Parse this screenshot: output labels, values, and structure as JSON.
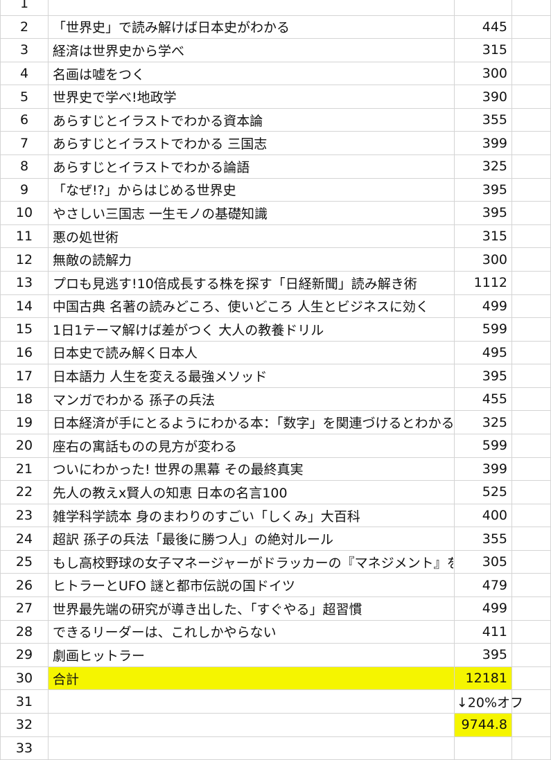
{
  "rows": [
    {
      "n": "1",
      "title": "",
      "price": ""
    },
    {
      "n": "2",
      "title": "「世界史」で読み解けば日本史がわかる",
      "price": "445"
    },
    {
      "n": "3",
      "title": "経済は世界史から学べ",
      "price": "315"
    },
    {
      "n": "4",
      "title": "名画は嘘をつく",
      "price": "300"
    },
    {
      "n": "5",
      "title": "世界史で学べ!地政学",
      "price": "390"
    },
    {
      "n": "6",
      "title": "あらすじとイラストでわかる資本論",
      "price": "355"
    },
    {
      "n": "7",
      "title": "あらすじとイラストでわかる 三国志",
      "price": "399"
    },
    {
      "n": "8",
      "title": "あらすじとイラストでわかる論語",
      "price": "325"
    },
    {
      "n": "9",
      "title": "「なぜ!?」からはじめる世界史",
      "price": "395"
    },
    {
      "n": "10",
      "title": "やさしい三国志 一生モノの基礎知識",
      "price": "395"
    },
    {
      "n": "11",
      "title": "悪の処世術",
      "price": "315"
    },
    {
      "n": "12",
      "title": "無敵の読解力",
      "price": "300"
    },
    {
      "n": "13",
      "title": "プロも見逃す!10倍成長する株を探す「日経新聞」読み解き術",
      "price": "1112"
    },
    {
      "n": "14",
      "title": "中国古典 名著の読みどころ、使いどころ 人生とビジネスに効く",
      "price": "499"
    },
    {
      "n": "15",
      "title": "1日1テーマ解けば差がつく 大人の教養ドリル",
      "price": "599"
    },
    {
      "n": "16",
      "title": "日本史で読み解く日本人",
      "price": "495"
    },
    {
      "n": "17",
      "title": "日本語力 人生を変える最強メソッド",
      "price": "395"
    },
    {
      "n": "18",
      "title": "マンガでわかる 孫子の兵法",
      "price": "455"
    },
    {
      "n": "19",
      "title": "日本経済が手にとるようにわかる本：「数字」を関連づけるとわかる",
      "price": "325"
    },
    {
      "n": "20",
      "title": "座右の寓話ものの見方が変わる",
      "price": "599"
    },
    {
      "n": "21",
      "title": "ついにわかった! 世界の黒幕 その最終真実",
      "price": "399"
    },
    {
      "n": "22",
      "title": "先人の教えx賢人の知恵 日本の名言100",
      "price": "525"
    },
    {
      "n": "23",
      "title": "雑学科学読本 身のまわりのすごい「しくみ」大百科",
      "price": "400"
    },
    {
      "n": "24",
      "title": "超訳 孫子の兵法「最後に勝つ人」の絶対ルール",
      "price": "355"
    },
    {
      "n": "25",
      "title": "もし高校野球の女子マネージャーがドラッカーの『マネジメント』を読んだら",
      "price": "305"
    },
    {
      "n": "26",
      "title": "ヒトラーとUFO 謎と都市伝説の国ドイツ",
      "price": "479"
    },
    {
      "n": "27",
      "title": "世界最先端の研究が導き出した、「すぐやる」超習慣",
      "price": "499"
    },
    {
      "n": "28",
      "title": "できるリーダーは、これしかやらない",
      "price": "411"
    },
    {
      "n": "29",
      "title": "劇画ヒットラー",
      "price": "395"
    }
  ],
  "total": {
    "n": "30",
    "label": "合計",
    "value": "12181"
  },
  "discount": {
    "n": "31",
    "label": "↓20%オフ"
  },
  "discounted": {
    "n": "32",
    "value": "9744.8"
  },
  "last_row": {
    "n": "33"
  },
  "highlight_color": "#f5f500"
}
